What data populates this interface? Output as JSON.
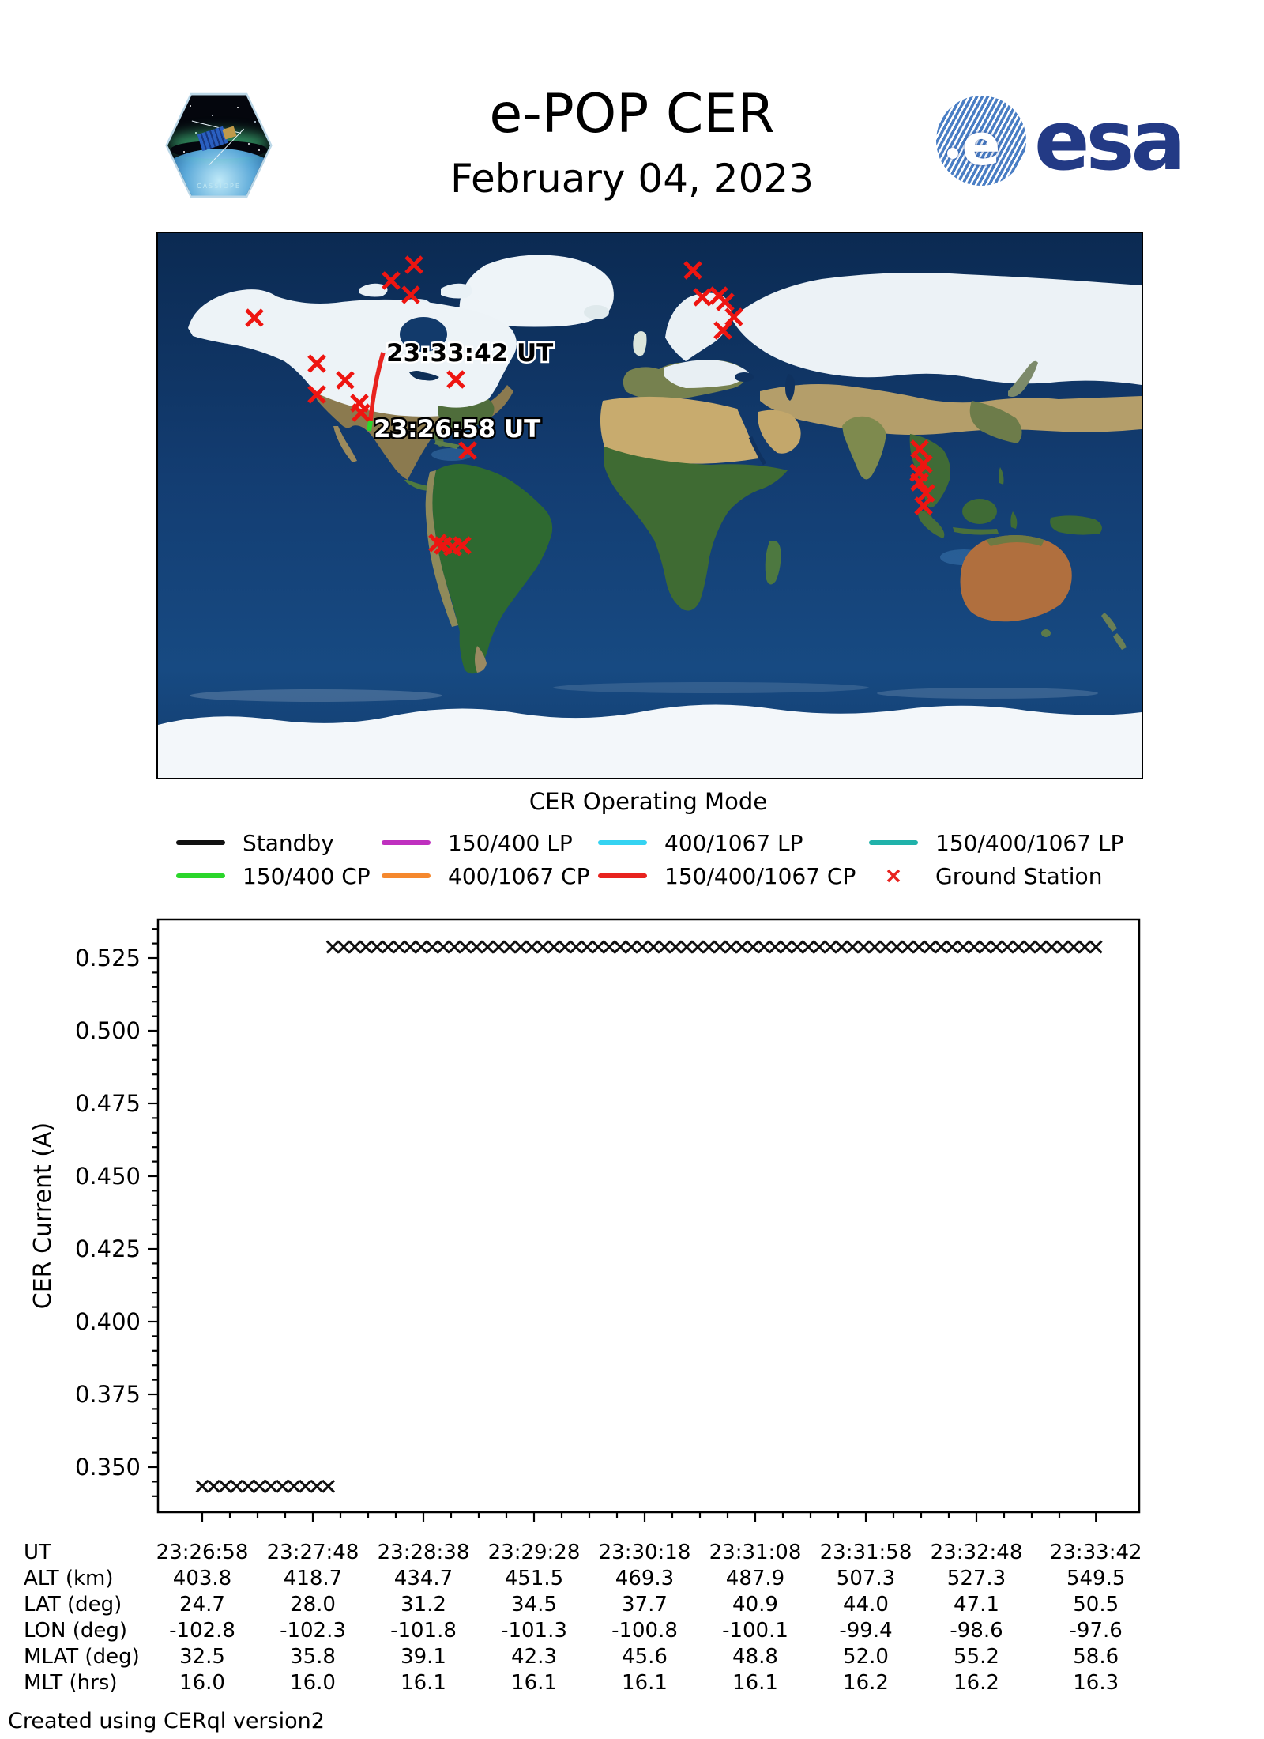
{
  "header": {
    "title": "e-POP CER",
    "date": "February 04, 2023",
    "esa_wordmark": "esa",
    "mission_patch": "CASSIOPE"
  },
  "map": {
    "start_label": "23:26:58 UT",
    "end_label": "23:33:42 UT",
    "ground_station_color": "#ee1511",
    "ground_stations": [
      [
        122,
        107
      ],
      [
        324,
        40
      ],
      [
        295,
        60
      ],
      [
        320,
        78
      ],
      [
        201,
        165
      ],
      [
        237,
        186
      ],
      [
        201,
        204
      ],
      [
        255,
        215
      ],
      [
        257,
        227
      ],
      [
        377,
        185
      ],
      [
        392,
        275
      ],
      [
        677,
        47
      ],
      [
        689,
        81
      ],
      [
        710,
        79
      ],
      [
        718,
        87
      ],
      [
        729,
        106
      ],
      [
        715,
        123
      ],
      [
        964,
        273
      ],
      [
        969,
        292
      ],
      [
        963,
        303
      ],
      [
        964,
        315
      ],
      [
        972,
        329
      ],
      [
        969,
        345
      ],
      [
        354,
        392
      ],
      [
        361,
        395
      ],
      [
        373,
        397
      ],
      [
        385,
        395
      ]
    ],
    "trajectory": {
      "segments": [
        {
          "mode": "150/400 CP",
          "color": "#2bd62b",
          "from": [
            267,
            250
          ],
          "to": [
            269,
            237
          ]
        },
        {
          "mode": "150/400/1067 CP",
          "color": "#e8231f",
          "from": [
            269,
            237
          ],
          "ctrl": [
            273,
            193
          ],
          "to": [
            285,
            151
          ]
        }
      ]
    }
  },
  "legend": {
    "title": "CER Operating Mode",
    "rows": [
      [
        {
          "label": "Standby",
          "color": "#111111",
          "kind": "line"
        },
        {
          "label": "150/400 LP",
          "color": "#bf30bf",
          "kind": "line"
        },
        {
          "label": "400/1067 LP",
          "color": "#35d3f2",
          "kind": "line"
        },
        {
          "label": "150/400/1067 LP",
          "color": "#20b2aa",
          "kind": "line"
        }
      ],
      [
        {
          "label": "150/400 CP",
          "color": "#2bd62b",
          "kind": "line"
        },
        {
          "label": "400/1067 CP",
          "color": "#f5882e",
          "kind": "line"
        },
        {
          "label": "150/400/1067 CP",
          "color": "#e8231f",
          "kind": "line"
        },
        {
          "label": "Ground Station",
          "color": "#e8231f",
          "kind": "marker"
        }
      ]
    ]
  },
  "chart_data": {
    "type": "scatter",
    "marker": "x",
    "marker_color": "#111111",
    "ylabel": "CER Current (A)",
    "ylim": [
      0.3345,
      0.5385
    ],
    "yticks": [
      "0.350",
      "0.375",
      "0.400",
      "0.425",
      "0.450",
      "0.475",
      "0.500",
      "0.525"
    ],
    "xticks": [
      {
        "label": "23:26:58",
        "t": 0
      },
      {
        "label": "23:27:48",
        "t": 50
      },
      {
        "label": "23:28:38",
        "t": 100
      },
      {
        "label": "23:29:28",
        "t": 150
      },
      {
        "label": "23:30:18",
        "t": 200
      },
      {
        "label": "23:31:08",
        "t": 250
      },
      {
        "label": "23:31:58",
        "t": 300
      },
      {
        "label": "23:32:48",
        "t": 350
      },
      {
        "label": "23:33:42",
        "t": 404
      }
    ],
    "series": [
      {
        "name": "CER Current",
        "segments": [
          {
            "t_start": 0,
            "t_end": 57,
            "points": 12,
            "value": 0.3434
          },
          {
            "t_start": 59,
            "t_end": 404,
            "points": 70,
            "value": 0.5288
          }
        ]
      }
    ]
  },
  "table": {
    "rows": [
      {
        "label": "UT",
        "values": [
          "23:26:58",
          "23:27:48",
          "23:28:38",
          "23:29:28",
          "23:30:18",
          "23:31:08",
          "23:31:58",
          "23:32:48",
          "23:33:42"
        ]
      },
      {
        "label": "ALT (km)",
        "values": [
          "403.8",
          "418.7",
          "434.7",
          "451.5",
          "469.3",
          "487.9",
          "507.3",
          "527.3",
          "549.5"
        ]
      },
      {
        "label": "LAT (deg)",
        "values": [
          "24.7",
          "28.0",
          "31.2",
          "34.5",
          "37.7",
          "40.9",
          "44.0",
          "47.1",
          "50.5"
        ]
      },
      {
        "label": "LON (deg)",
        "values": [
          "-102.8",
          "-102.3",
          "-101.8",
          "-101.3",
          "-100.8",
          "-100.1",
          "-99.4",
          "-98.6",
          "-97.6"
        ]
      },
      {
        "label": "MLAT (deg)",
        "values": [
          "32.5",
          "35.8",
          "39.1",
          "42.3",
          "45.6",
          "48.8",
          "52.0",
          "55.2",
          "58.6"
        ]
      },
      {
        "label": "MLT (hrs)",
        "values": [
          "16.0",
          "16.0",
          "16.1",
          "16.1",
          "16.1",
          "16.1",
          "16.2",
          "16.2",
          "16.3"
        ]
      }
    ]
  },
  "footer": {
    "credit": "Created using CERql version2"
  }
}
